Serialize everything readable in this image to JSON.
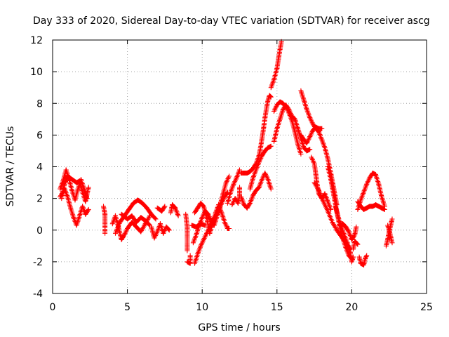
{
  "chart_data": {
    "type": "scatter",
    "title": "Day 333 of 2020, Sidereal Day-to-day VTEC variation (SDTVAR) for receiver ascg",
    "xlabel": "GPS time / hours",
    "ylabel": "SDTVAR / TECUs",
    "xlim": [
      0,
      25
    ],
    "ylim": [
      -4,
      12
    ],
    "xticks": [
      0,
      5,
      10,
      15,
      20,
      25
    ],
    "yticks": [
      -4,
      -2,
      0,
      2,
      4,
      6,
      8,
      10,
      12
    ],
    "xtick_labels": [
      "0",
      "5",
      "10",
      "15",
      "20",
      "25"
    ],
    "ytick_labels": [
      "-4",
      "-2",
      "0",
      "2",
      "4",
      "6",
      "8",
      "10",
      "12"
    ],
    "grid": true,
    "marker": "+",
    "marker_color": "#ff0000",
    "series_traces": [
      [
        [
          0.5,
          2.6
        ],
        [
          0.7,
          3.1
        ],
        [
          0.9,
          3.8
        ],
        [
          1.1,
          3.2
        ],
        [
          1.3,
          2.5
        ],
        [
          1.5,
          1.9
        ],
        [
          1.7,
          2.6
        ],
        [
          1.9,
          3.2
        ],
        [
          2.1,
          2.6
        ],
        [
          2.3,
          2.0
        ]
      ],
      [
        [
          0.5,
          2.1
        ],
        [
          0.8,
          2.6
        ],
        [
          1.0,
          2.1
        ],
        [
          1.2,
          1.4
        ],
        [
          1.4,
          0.8
        ],
        [
          1.6,
          0.3
        ],
        [
          1.8,
          0.9
        ],
        [
          2.0,
          1.5
        ],
        [
          2.2,
          1.0
        ],
        [
          2.4,
          1.3
        ]
      ],
      [
        [
          0.6,
          2.0
        ],
        [
          0.8,
          2.9
        ],
        [
          1.0,
          3.4
        ],
        [
          1.3,
          3.2
        ],
        [
          1.6,
          3.0
        ],
        [
          1.8,
          3.1
        ],
        [
          2.0,
          2.4
        ],
        [
          2.2,
          1.8
        ],
        [
          2.4,
          2.7
        ]
      ],
      [
        [
          3.4,
          1.5
        ],
        [
          3.5,
          1.0
        ],
        [
          3.5,
          -0.2
        ]
      ],
      [
        [
          4.0,
          0.4
        ],
        [
          4.2,
          0.9
        ],
        [
          4.4,
          0.2
        ],
        [
          4.6,
          -0.6
        ],
        [
          4.8,
          -0.3
        ],
        [
          5.0,
          0.1
        ],
        [
          5.3,
          0.5
        ],
        [
          5.6,
          0.2
        ],
        [
          5.9,
          -0.1
        ],
        [
          6.2,
          0.4
        ],
        [
          6.5,
          0.9
        ]
      ],
      [
        [
          4.2,
          -0.2
        ],
        [
          4.5,
          0.5
        ],
        [
          4.8,
          0.9
        ],
        [
          5.1,
          1.3
        ],
        [
          5.4,
          1.7
        ],
        [
          5.7,
          1.9
        ],
        [
          6.0,
          1.7
        ],
        [
          6.3,
          1.4
        ],
        [
          6.6,
          1.0
        ],
        [
          6.9,
          0.7
        ]
      ],
      [
        [
          4.6,
          1.0
        ],
        [
          5.0,
          0.7
        ],
        [
          5.3,
          0.9
        ],
        [
          5.6,
          0.5
        ],
        [
          5.9,
          0.8
        ],
        [
          6.2,
          0.6
        ],
        [
          6.5,
          0.3
        ]
      ],
      [
        [
          6.6,
          0.2
        ],
        [
          6.8,
          -0.5
        ],
        [
          7.0,
          -0.1
        ],
        [
          7.2,
          0.4
        ],
        [
          7.4,
          -0.2
        ],
        [
          7.6,
          0.2
        ],
        [
          7.8,
          0.0
        ]
      ],
      [
        [
          7.0,
          1.4
        ],
        [
          7.3,
          1.2
        ],
        [
          7.5,
          1.5
        ]
      ],
      [
        [
          7.9,
          1.1
        ],
        [
          8.0,
          1.6
        ],
        [
          8.2,
          1.4
        ],
        [
          8.4,
          0.9
        ]
      ],
      [
        [
          8.9,
          1.0
        ],
        [
          9.0,
          0.2
        ],
        [
          9.0,
          -0.5
        ],
        [
          9.0,
          -1.3
        ]
      ],
      [
        [
          9.0,
          -2.0
        ],
        [
          9.2,
          -2.1
        ],
        [
          9.2,
          -1.6
        ]
      ],
      [
        [
          9.4,
          -0.8
        ],
        [
          9.6,
          -0.3
        ],
        [
          9.8,
          0.3
        ],
        [
          10.0,
          0.8
        ],
        [
          10.2,
          1.2
        ],
        [
          10.4,
          1.0
        ],
        [
          10.6,
          0.6
        ],
        [
          10.8,
          0.3
        ],
        [
          11.0,
          0.9
        ],
        [
          11.2,
          1.6
        ],
        [
          11.4,
          2.3
        ],
        [
          11.6,
          3.0
        ],
        [
          11.8,
          3.4
        ]
      ],
      [
        [
          9.5,
          -2.1
        ],
        [
          9.7,
          -1.5
        ],
        [
          9.9,
          -1.0
        ],
        [
          10.1,
          -0.6
        ],
        [
          10.3,
          -0.2
        ],
        [
          10.5,
          0.2
        ],
        [
          10.7,
          0.6
        ],
        [
          10.9,
          0.9
        ],
        [
          11.1,
          1.2
        ],
        [
          11.3,
          1.7
        ],
        [
          11.5,
          2.1
        ],
        [
          11.7,
          2.4
        ]
      ],
      [
        [
          9.5,
          1.1
        ],
        [
          9.7,
          1.4
        ],
        [
          9.9,
          1.7
        ],
        [
          10.1,
          1.5
        ],
        [
          10.3,
          0.8
        ],
        [
          10.5,
          -0.2
        ],
        [
          10.7,
          0.4
        ],
        [
          10.9,
          1.1
        ],
        [
          11.1,
          1.6
        ],
        [
          11.3,
          1.1
        ],
        [
          11.5,
          0.5
        ],
        [
          11.7,
          0.1
        ]
      ],
      [
        [
          9.3,
          0.3
        ],
        [
          9.6,
          0.2
        ],
        [
          9.9,
          0.4
        ],
        [
          10.2,
          0.3
        ]
      ],
      [
        [
          11.7,
          1.7
        ],
        [
          11.9,
          2.4
        ],
        [
          12.1,
          2.9
        ],
        [
          12.3,
          3.3
        ],
        [
          12.5,
          3.8
        ]
      ],
      [
        [
          12.0,
          1.6
        ],
        [
          12.2,
          2.0
        ],
        [
          12.4,
          1.7
        ],
        [
          12.5,
          2.2
        ],
        [
          12.5,
          2.7
        ]
      ],
      [
        [
          11.7,
          0.1
        ],
        [
          11.8,
          0.1
        ]
      ],
      [
        [
          12.6,
          3.6
        ],
        [
          12.8,
          3.6
        ],
        [
          13.0,
          3.6
        ],
        [
          13.2,
          3.7
        ],
        [
          13.4,
          3.9
        ],
        [
          13.6,
          4.2
        ],
        [
          13.8,
          4.7
        ],
        [
          13.9,
          5.2
        ],
        [
          14.0,
          5.8
        ],
        [
          14.1,
          6.4
        ],
        [
          14.2,
          7.1
        ],
        [
          14.3,
          7.7
        ],
        [
          14.4,
          8.2
        ],
        [
          14.5,
          8.5
        ],
        [
          14.6,
          8.4
        ]
      ],
      [
        [
          12.6,
          2.1
        ],
        [
          12.8,
          1.6
        ],
        [
          13.0,
          1.4
        ],
        [
          13.2,
          1.7
        ],
        [
          13.4,
          2.2
        ],
        [
          13.6,
          2.5
        ],
        [
          13.8,
          2.7
        ],
        [
          14.0,
          3.2
        ],
        [
          14.2,
          3.6
        ],
        [
          14.4,
          3.2
        ],
        [
          14.6,
          2.6
        ]
      ],
      [
        [
          13.2,
          2.6
        ],
        [
          13.4,
          3.3
        ],
        [
          13.6,
          3.8
        ],
        [
          13.8,
          4.3
        ],
        [
          14.0,
          4.7
        ],
        [
          14.2,
          5.0
        ],
        [
          14.4,
          5.2
        ],
        [
          14.6,
          5.3
        ]
      ],
      [
        [
          14.6,
          9.0
        ],
        [
          14.8,
          9.5
        ],
        [
          15.0,
          10.2
        ],
        [
          15.1,
          10.8
        ],
        [
          15.2,
          11.4
        ],
        [
          15.3,
          11.9
        ]
      ],
      [
        [
          14.8,
          7.5
        ],
        [
          15.0,
          7.9
        ],
        [
          15.2,
          8.1
        ],
        [
          15.4,
          8.0
        ],
        [
          15.6,
          7.8
        ],
        [
          15.8,
          7.4
        ],
        [
          16.0,
          6.9
        ],
        [
          16.2,
          6.2
        ],
        [
          16.4,
          5.4
        ],
        [
          16.6,
          4.8
        ]
      ],
      [
        [
          14.8,
          5.6
        ],
        [
          15.0,
          6.4
        ],
        [
          15.2,
          7.0
        ],
        [
          15.4,
          7.6
        ],
        [
          15.6,
          7.9
        ],
        [
          15.8,
          7.6
        ],
        [
          16.0,
          7.2
        ],
        [
          16.2,
          7.0
        ],
        [
          16.4,
          6.4
        ],
        [
          16.6,
          5.8
        ],
        [
          16.8,
          5.2
        ],
        [
          17.0,
          5.0
        ],
        [
          17.2,
          5.1
        ]
      ],
      [
        [
          16.6,
          8.8
        ],
        [
          16.8,
          8.2
        ],
        [
          17.0,
          7.6
        ],
        [
          17.2,
          7.1
        ],
        [
          17.4,
          6.7
        ],
        [
          17.6,
          6.4
        ],
        [
          17.8,
          6.2
        ],
        [
          18.0,
          5.7
        ],
        [
          18.2,
          5.2
        ],
        [
          18.4,
          4.5
        ],
        [
          18.6,
          3.6
        ],
        [
          18.8,
          2.6
        ],
        [
          19.0,
          1.6
        ]
      ],
      [
        [
          16.6,
          6.0
        ],
        [
          16.8,
          5.7
        ],
        [
          17.0,
          5.5
        ],
        [
          17.2,
          5.9
        ],
        [
          17.4,
          6.3
        ],
        [
          17.6,
          6.5
        ],
        [
          17.8,
          6.4
        ],
        [
          18.0,
          6.4
        ]
      ],
      [
        [
          17.3,
          4.6
        ],
        [
          17.5,
          4.2
        ],
        [
          17.6,
          3.5
        ],
        [
          17.7,
          2.8
        ],
        [
          17.8,
          2.3
        ],
        [
          18.0,
          2.0
        ],
        [
          18.2,
          2.3
        ],
        [
          18.4,
          1.8
        ],
        [
          18.6,
          1.3
        ]
      ],
      [
        [
          17.5,
          3.0
        ],
        [
          17.8,
          2.5
        ],
        [
          18.1,
          1.8
        ],
        [
          18.4,
          1.2
        ],
        [
          18.7,
          0.5
        ],
        [
          19.0,
          0.0
        ],
        [
          19.3,
          -0.4
        ],
        [
          19.6,
          -0.8
        ],
        [
          19.9,
          -1.2
        ]
      ],
      [
        [
          18.4,
          4.0
        ],
        [
          18.6,
          3.2
        ],
        [
          18.8,
          2.2
        ],
        [
          19.0,
          1.2
        ],
        [
          19.2,
          0.2
        ],
        [
          19.4,
          -0.5
        ],
        [
          19.6,
          -1.1
        ],
        [
          19.8,
          -1.6
        ],
        [
          20.0,
          -1.8
        ]
      ],
      [
        [
          18.9,
          1.5
        ],
        [
          19.1,
          0.8
        ],
        [
          19.3,
          0.2
        ],
        [
          19.5,
          -0.3
        ],
        [
          19.7,
          -0.8
        ],
        [
          19.9,
          -1.4
        ],
        [
          20.0,
          -2.0
        ],
        [
          20.1,
          -1.7
        ]
      ],
      [
        [
          19.2,
          0.3
        ],
        [
          19.4,
          0.4
        ],
        [
          19.6,
          0.2
        ],
        [
          19.8,
          -0.1
        ],
        [
          20.0,
          -0.6
        ],
        [
          20.2,
          -0.3
        ],
        [
          20.3,
          0.2
        ]
      ],
      [
        [
          20.1,
          -1.2
        ],
        [
          20.2,
          -0.7
        ],
        [
          20.4,
          -0.9
        ]
      ],
      [
        [
          20.5,
          -1.7
        ],
        [
          20.6,
          -2.1
        ],
        [
          20.8,
          -2.2
        ],
        [
          20.9,
          -1.8
        ],
        [
          21.0,
          -1.6
        ]
      ],
      [
        [
          20.4,
          1.3
        ],
        [
          20.6,
          1.9
        ],
        [
          20.8,
          2.4
        ],
        [
          21.0,
          2.9
        ],
        [
          21.2,
          3.3
        ],
        [
          21.4,
          3.6
        ],
        [
          21.6,
          3.5
        ],
        [
          21.8,
          2.9
        ],
        [
          22.0,
          2.1
        ],
        [
          22.2,
          1.5
        ]
      ],
      [
        [
          20.4,
          1.8
        ],
        [
          20.6,
          1.5
        ],
        [
          20.8,
          1.3
        ],
        [
          21.0,
          1.4
        ],
        [
          21.2,
          1.5
        ],
        [
          21.4,
          1.5
        ],
        [
          21.6,
          1.6
        ],
        [
          21.8,
          1.5
        ],
        [
          22.0,
          1.4
        ],
        [
          22.2,
          1.3
        ]
      ],
      [
        [
          22.3,
          -1.0
        ],
        [
          22.4,
          -0.6
        ],
        [
          22.5,
          -0.1
        ],
        [
          22.6,
          0.3
        ],
        [
          22.7,
          0.7
        ]
      ],
      [
        [
          22.4,
          0.3
        ],
        [
          22.5,
          0.0
        ],
        [
          22.6,
          -0.4
        ],
        [
          22.7,
          -0.8
        ]
      ]
    ]
  }
}
